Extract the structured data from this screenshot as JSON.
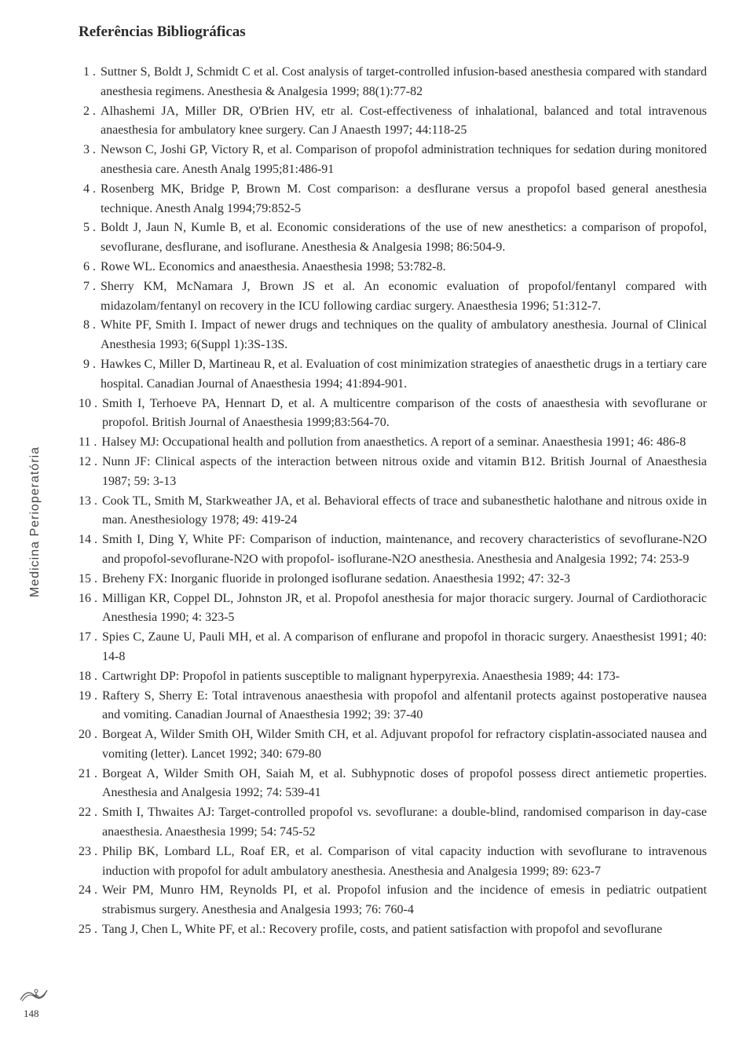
{
  "title": "Referências Bibliográficas",
  "sideLabel": "Medicina Perioperatória",
  "pageNumber": "148",
  "colors": {
    "text": "#2a2a2a",
    "background": "#ffffff",
    "sideLabel": "#444444",
    "ornamentStroke": "#555555"
  },
  "typography": {
    "title_fontsize": 19,
    "body_fontsize": 16,
    "sidelabel_fontsize": 16,
    "pagenum_fontsize": 13,
    "line_height": 1.55,
    "font_family_body": "Georgia, Times New Roman, serif",
    "font_family_side": "Verdana, Arial, sans-serif"
  },
  "references": [
    {
      "n": "1 .",
      "text": "Suttner S, Boldt J, Schmidt C et al. Cost analysis of target-controlled infusion-based anesthesia compared with standard anesthesia regimens. Anesthesia & Analgesia 1999; 88(1):77-82"
    },
    {
      "n": "2 .",
      "text": "Alhashemi JA, Miller DR, O'Brien HV, etr al. Cost-effectiveness of inhalational, balanced and total intravenous anaesthesia for ambulatory knee surgery. Can J Anaesth 1997; 44:118-25"
    },
    {
      "n": "3 .",
      "text": "Newson C, Joshi GP, Victory R, et al. Comparison of propofol administration techniques for sedation during monitored anesthesia care. Anesth Analg 1995;81:486-91"
    },
    {
      "n": "4 .",
      "text": "Rosenberg MK, Bridge P, Brown M. Cost comparison: a desflurane versus a propofol based general anesthesia technique. Anesth Analg 1994;79:852-5"
    },
    {
      "n": "5 .",
      "text": "Boldt J, Jaun N, Kumle B, et al. Economic considerations of the use of new anesthetics: a comparison of propofol, sevoflurane, desflurane, and isoflurane. Anesthesia & Analgesia 1998; 86:504-9."
    },
    {
      "n": "6 .",
      "text": "Rowe WL. Economics and anaesthesia. Anaesthesia 1998; 53:782-8."
    },
    {
      "n": "7 .",
      "text": "Sherry KM, McNamara J, Brown JS et al. An economic evaluation of propofol/fentanyl compared with midazolam/fentanyl on recovery in the ICU following cardiac surgery. Anaesthesia 1996; 51:312-7."
    },
    {
      "n": "8 .",
      "text": "White PF, Smith I. Impact of newer drugs and techniques on the quality of ambulatory anesthesia. Journal of Clinical Anesthesia 1993; 6(Suppl 1):3S-13S."
    },
    {
      "n": "9 .",
      "text": "Hawkes C, Miller D, Martineau R, et al. Evaluation of cost minimization strategies of anaesthetic drugs in a tertiary care hospital. Canadian Journal of Anaesthesia 1994; 41:894-901."
    },
    {
      "n": "10 .",
      "text": "Smith I, Terhoeve PA, Hennart D, et al. A multicentre comparison of the costs of anaesthesia with sevoflurane or propofol. British Journal of Anaesthesia 1999;83:564-70."
    },
    {
      "n": "11 .",
      "text": "Halsey MJ: Occupational health and pollution from anaesthetics. A report of a seminar. Anaesthesia 1991; 46: 486-8"
    },
    {
      "n": "12 .",
      "text": "Nunn JF: Clinical aspects of the interaction between nitrous oxide and vitamin B12. British Journal of Anaesthesia 1987; 59: 3-13"
    },
    {
      "n": "13 .",
      "text": "Cook TL, Smith M, Starkweather JA, et al. Behavioral effects of trace and subanesthetic halothane and nitrous oxide in man. Anesthesiology 1978; 49: 419-24"
    },
    {
      "n": "14 .",
      "text": "Smith I, Ding Y, White PF: Comparison of induction, maintenance, and recovery characteristics of sevoflurane-N2O and propofol-sevoflurane-N2O with propofol- isoflurane-N2O anesthesia. Anesthesia and Analgesia 1992; 74: 253-9"
    },
    {
      "n": "15 .",
      "text": "Breheny FX: Inorganic fluoride in prolonged isoflurane sedation. Anaesthesia 1992; 47: 32-3"
    },
    {
      "n": "16 .",
      "text": "Milligan KR, Coppel DL, Johnston JR, et al. Propofol anesthesia for major thoracic surgery. Journal of Cardiothoracic Anesthesia 1990; 4: 323-5"
    },
    {
      "n": "17 .",
      "text": "Spies C, Zaune U, Pauli MH, et al. A comparison of enflurane and propofol in thoracic surgery. Anaesthesist 1991; 40: 14-8"
    },
    {
      "n": "18 .",
      "text": "Cartwright DP: Propofol in patients susceptible to malignant hyperpyrexia. Anaesthesia 1989; 44: 173-"
    },
    {
      "n": "19 .",
      "text": "Raftery S, Sherry E: Total intravenous anaesthesia with propofol and alfentanil protects against postoperative nausea and vomiting. Canadian Journal of Anaesthesia 1992; 39: 37-40"
    },
    {
      "n": "20 .",
      "text": "Borgeat A, Wilder Smith OH, Wilder Smith CH, et al. Adjuvant propofol for refractory cisplatin-associated nausea and vomiting (letter). Lancet 1992; 340: 679-80"
    },
    {
      "n": "21 .",
      "text": "Borgeat A, Wilder Smith OH, Saiah M, et al. Subhypnotic doses of propofol  possess direct antiemetic properties. Anesthesia and Analgesia 1992; 74: 539-41"
    },
    {
      "n": "22 .",
      "text": "Smith I, Thwaites AJ: Target-controlled propofol vs. sevoflurane: a double-blind, randomised comparison in day-case anaesthesia. Anaesthesia 1999; 54: 745-52"
    },
    {
      "n": "23 .",
      "text": "Philip BK, Lombard LL, Roaf ER, et al. Comparison of vital capacity induction with sevoflurane to intravenous induction with propofol for adult ambulatory anesthesia. Anesthesia and Analgesia 1999; 89: 623-7"
    },
    {
      "n": "24 .",
      "text": "Weir PM, Munro HM, Reynolds PI, et al. Propofol infusion and the incidence of emesis in pediatric outpatient strabismus surgery. Anesthesia and Analgesia 1993; 76: 760-4"
    },
    {
      "n": "25 .",
      "text": "Tang J, Chen L, White PF, et al.: Recovery profile, costs, and patient satisfaction with propofol and sevoflurane"
    }
  ]
}
